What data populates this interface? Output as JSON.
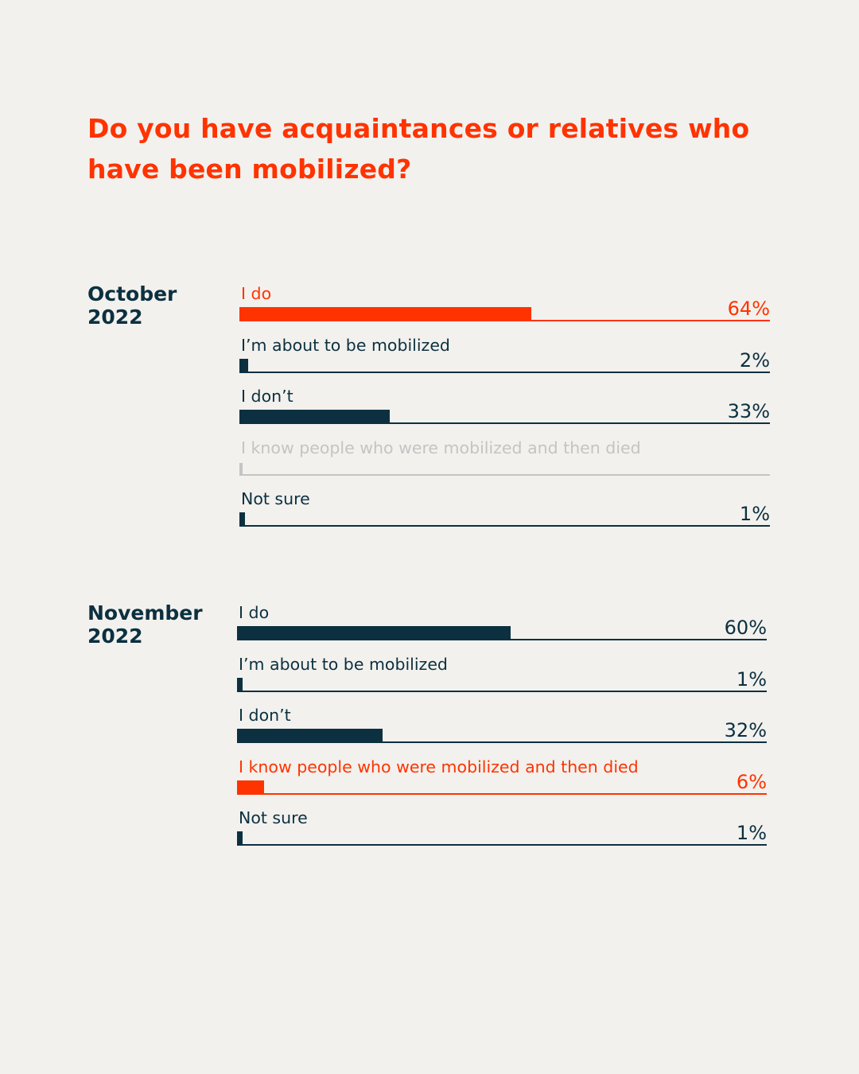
{
  "title": "Do you have acquaintances or relatives who have been mobilized?",
  "colors": {
    "accent": "#ff3300",
    "primary": "#0c3040",
    "muted": "#c4c4c4",
    "background": "#f2f1ed"
  },
  "chart_data": [
    {
      "type": "bar",
      "orientation": "horizontal",
      "group_label": "October 2022",
      "categories": [
        "I do",
        "I’m about to be mobilized",
        "I don’t",
        "I know people who were mobilized and then died",
        "Not sure"
      ],
      "values": [
        64,
        2,
        33,
        null,
        1
      ],
      "value_labels": [
        "64%",
        "2%",
        "33%",
        "",
        "1%"
      ],
      "highlight": [
        true,
        false,
        false,
        false,
        false
      ],
      "muted": [
        false,
        false,
        false,
        true,
        false
      ],
      "xlim": [
        0,
        100
      ]
    },
    {
      "type": "bar",
      "orientation": "horizontal",
      "group_label": "November 2022",
      "categories": [
        "I do",
        "I’m about to be mobilized",
        "I don’t",
        "I know people who were mobilized and then died",
        "Not sure"
      ],
      "values": [
        60,
        1,
        32,
        6,
        1
      ],
      "value_labels": [
        "60%",
        "1%",
        "32%",
        "6%",
        "1%"
      ],
      "highlight": [
        false,
        false,
        false,
        true,
        false
      ],
      "muted": [
        false,
        false,
        false,
        false,
        false
      ],
      "xlim": [
        0,
        100
      ]
    }
  ]
}
